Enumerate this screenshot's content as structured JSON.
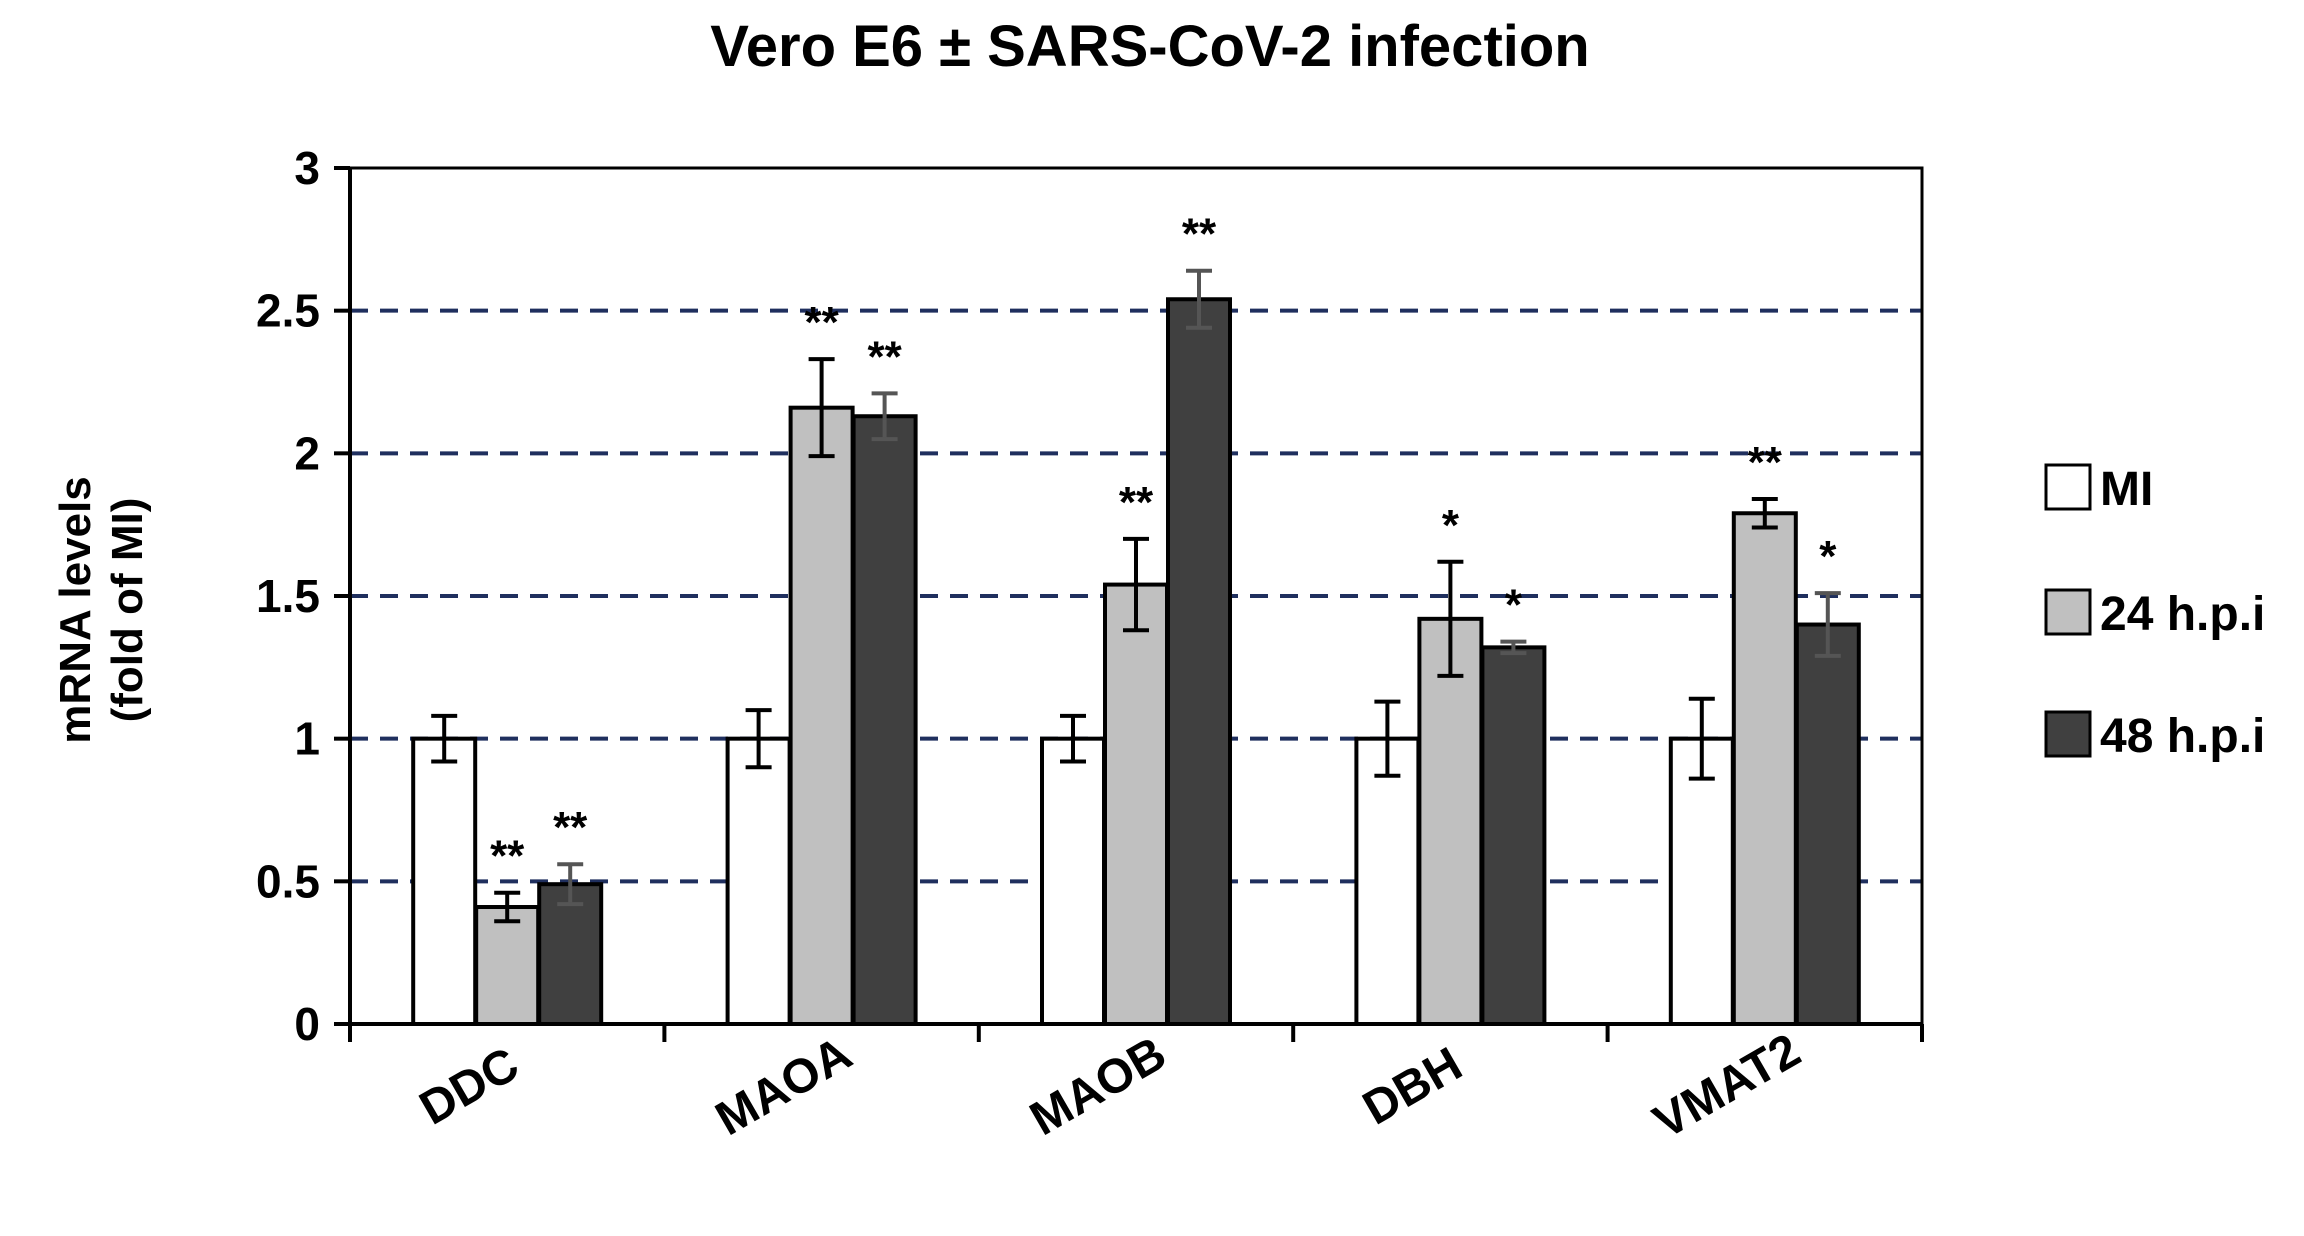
{
  "chart_data": {
    "type": "bar",
    "title": "Vero E6 ± SARS-CoV-2 infection",
    "ylabel_lines": [
      "mRNA levels",
      "(fold of MI)"
    ],
    "xlabel": "",
    "ylim": [
      0,
      3
    ],
    "yticks": [
      0,
      0.5,
      1,
      1.5,
      2,
      2.5,
      3
    ],
    "ytick_labels": [
      "0",
      "0.5",
      "1",
      "1.5",
      "2",
      "2.5",
      "3"
    ],
    "grid": "dashed horizontal at 0.5, 1, 1.5, 2, 2.5",
    "legend_position": "right",
    "categories": [
      "DDC",
      "MAOA",
      "MAOB",
      "DBH",
      "VMAT2"
    ],
    "series": [
      {
        "name": "MI",
        "color": "#ffffff",
        "values": [
          1.0,
          1.0,
          1.0,
          1.0,
          1.0
        ],
        "errors": [
          0.08,
          0.1,
          0.08,
          0.13,
          0.14
        ],
        "significance": [
          "",
          "",
          "",
          "",
          ""
        ]
      },
      {
        "name": "24 h.p.i",
        "color": "#c0c0c0",
        "values": [
          0.41,
          2.16,
          1.54,
          1.42,
          1.79
        ],
        "errors": [
          0.05,
          0.17,
          0.16,
          0.2,
          0.05
        ],
        "significance": [
          "**",
          "**",
          "**",
          "*",
          "**"
        ]
      },
      {
        "name": "48 h.p.i",
        "color": "#404040",
        "values": [
          0.49,
          2.13,
          2.54,
          1.32,
          1.4
        ],
        "errors": [
          0.07,
          0.08,
          0.1,
          0.02,
          0.11
        ],
        "significance": [
          "**",
          "**",
          "**",
          "*",
          "*"
        ]
      }
    ]
  },
  "colors": {
    "grid": "#1f2f5e",
    "bar_stroke": "#000000",
    "error_dark": "#000000",
    "error_gray": "#555555"
  }
}
